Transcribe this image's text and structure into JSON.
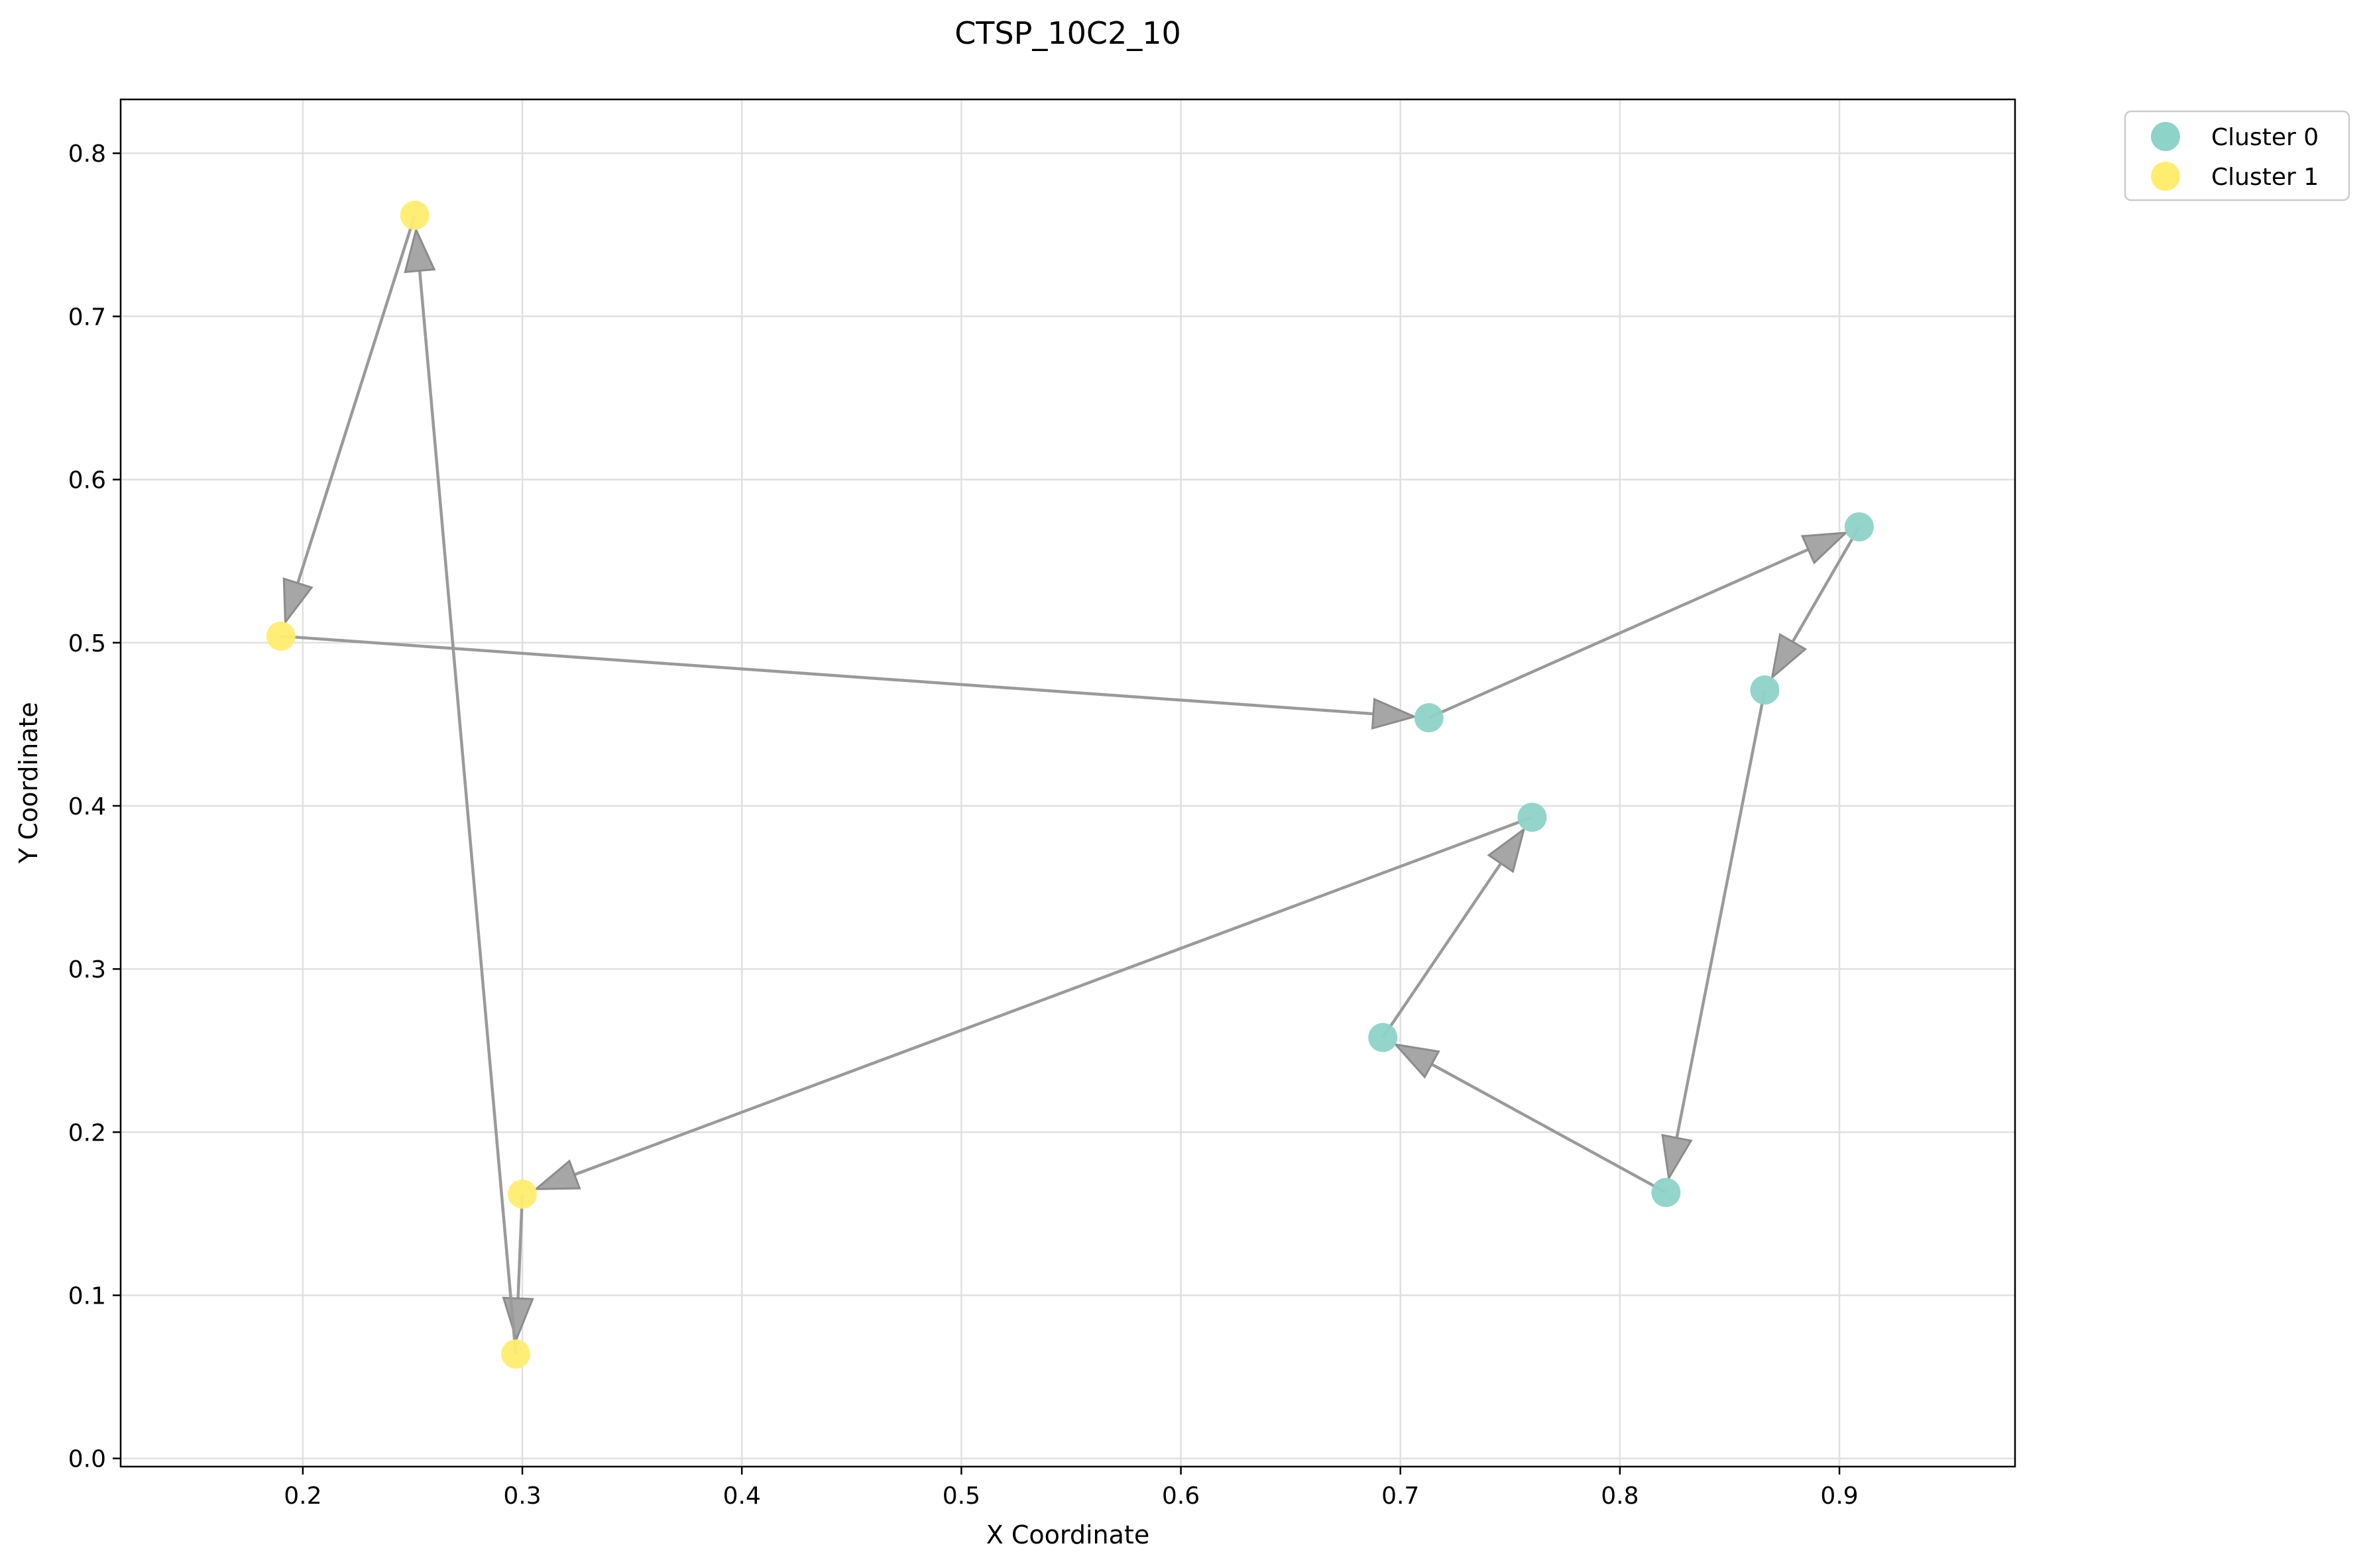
{
  "chart_data": {
    "type": "scatter",
    "title": "CTSP_10C2_10",
    "xlabel": "X Coordinate",
    "ylabel": "Y Coordinate",
    "xlim": [
      0.117,
      0.98
    ],
    "ylim": [
      -0.005,
      0.833
    ],
    "x_ticks": [
      0.2,
      0.3,
      0.4,
      0.5,
      0.6,
      0.7,
      0.8,
      0.9
    ],
    "x_tick_labels": [
      "0.2",
      "0.3",
      "0.4",
      "0.5",
      "0.6",
      "0.7",
      "0.8",
      "0.9"
    ],
    "y_ticks": [
      0.0,
      0.1,
      0.2,
      0.3,
      0.4,
      0.5,
      0.6,
      0.7,
      0.8
    ],
    "y_tick_labels": [
      "0.0",
      "0.1",
      "0.2",
      "0.3",
      "0.4",
      "0.5",
      "0.6",
      "0.7",
      "0.8"
    ],
    "grid": true,
    "legend_position": "outside-top-right",
    "series": [
      {
        "name": "Cluster 0",
        "color": "#8dd3c7",
        "points": [
          {
            "x": 0.713,
            "y": 0.454
          },
          {
            "x": 0.909,
            "y": 0.571
          },
          {
            "x": 0.866,
            "y": 0.471
          },
          {
            "x": 0.821,
            "y": 0.163
          },
          {
            "x": 0.692,
            "y": 0.258
          },
          {
            "x": 0.76,
            "y": 0.393
          }
        ]
      },
      {
        "name": "Cluster 1",
        "color": "#ffed6f",
        "points": [
          {
            "x": 0.251,
            "y": 0.762
          },
          {
            "x": 0.19,
            "y": 0.504
          },
          {
            "x": 0.3,
            "y": 0.162
          },
          {
            "x": 0.297,
            "y": 0.064
          }
        ]
      }
    ],
    "route": [
      {
        "x": 0.19,
        "y": 0.504
      },
      {
        "x": 0.713,
        "y": 0.454
      },
      {
        "x": 0.909,
        "y": 0.571
      },
      {
        "x": 0.866,
        "y": 0.471
      },
      {
        "x": 0.821,
        "y": 0.163
      },
      {
        "x": 0.692,
        "y": 0.258
      },
      {
        "x": 0.76,
        "y": 0.393
      },
      {
        "x": 0.3,
        "y": 0.162
      },
      {
        "x": 0.297,
        "y": 0.064
      },
      {
        "x": 0.251,
        "y": 0.762
      },
      {
        "x": 0.19,
        "y": 0.504
      }
    ],
    "route_color": "#999999"
  }
}
